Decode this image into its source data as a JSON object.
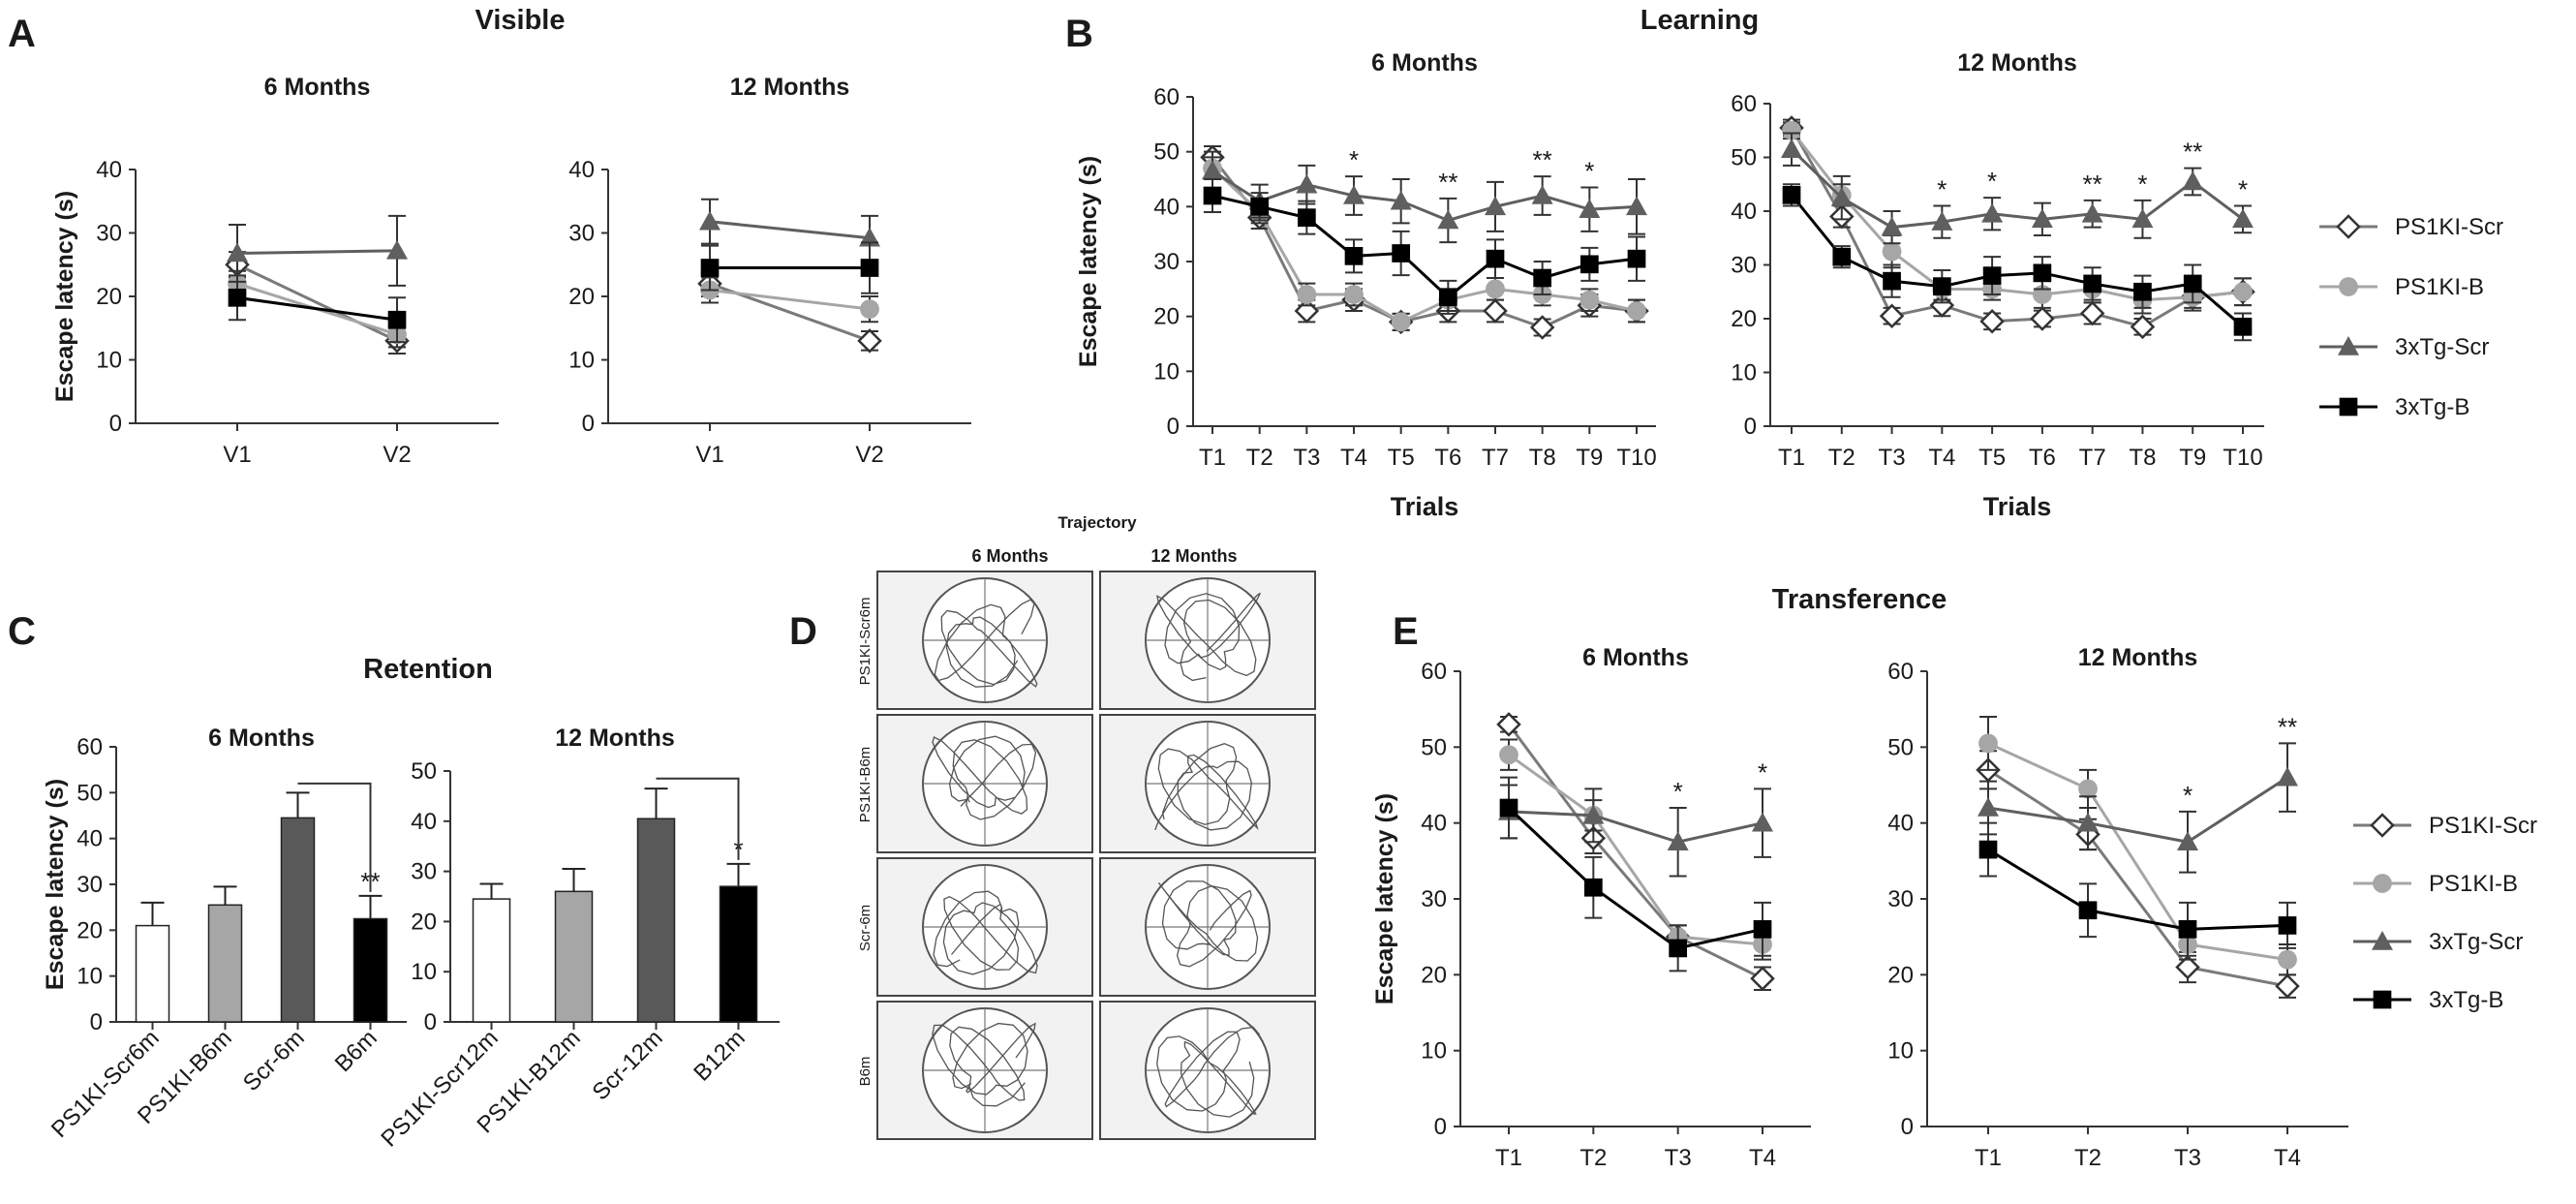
{
  "figure": {
    "panel_letters": [
      "A",
      "B",
      "C",
      "D",
      "E"
    ],
    "section_titles": {
      "visible": "Visible",
      "learning": "Learning",
      "retention": "Retention",
      "transference": "Transference",
      "trajectory": "Trajectory"
    },
    "trajectory": {
      "col_headers": [
        "6 Months",
        "12 Months"
      ],
      "row_labels": [
        "PS1KI-Scr6m",
        "PS1KI-B6m",
        "Scr-6m",
        "B6m"
      ]
    },
    "legend": [
      "PS1KI-Scr",
      "PS1KI-B",
      "3xTg-Scr",
      "3xTg-B"
    ]
  },
  "series_styles": [
    {
      "name": "PS1KI-Scr",
      "marker": "diamond-open",
      "color": "#7a7a7a"
    },
    {
      "name": "PS1KI-B",
      "marker": "circle",
      "color": "#a6a6a6"
    },
    {
      "name": "3xTg-Scr",
      "marker": "triangle",
      "color": "#5f5f5f"
    },
    {
      "name": "3xTg-B",
      "marker": "square",
      "color": "#000000"
    }
  ],
  "chart_data": [
    {
      "id": "A1",
      "type": "line",
      "section": "Visible",
      "title": "6 Months",
      "ylabel": "Escape latency (s)",
      "xlabel": "",
      "ylim": [
        0,
        40
      ],
      "yticks": [
        0,
        10,
        20,
        30,
        40
      ],
      "categories": [
        "V1",
        "V2"
      ],
      "series": [
        {
          "name": "PS1KI-Scr",
          "values": [
            25,
            13
          ],
          "errors": [
            2,
            2
          ]
        },
        {
          "name": "PS1KI-B",
          "values": [
            22,
            14
          ],
          "errors": [
            2,
            2
          ]
        },
        {
          "name": "3xTg-Scr",
          "values": [
            26.8,
            27.2
          ],
          "errors": [
            4.5,
            5.5
          ]
        },
        {
          "name": "3xTg-B",
          "values": [
            19.8,
            16.3
          ],
          "errors": [
            3.5,
            3.5
          ]
        }
      ],
      "significance": [
        "",
        ""
      ]
    },
    {
      "id": "A2",
      "type": "line",
      "section": "Visible",
      "title": "12 Months",
      "ylabel": "",
      "xlabel": "",
      "ylim": [
        0,
        40
      ],
      "yticks": [
        0,
        10,
        20,
        30,
        40
      ],
      "categories": [
        "V1",
        "V2"
      ],
      "series": [
        {
          "name": "PS1KI-Scr",
          "values": [
            22,
            13
          ],
          "errors": [
            2,
            1.5
          ]
        },
        {
          "name": "PS1KI-B",
          "values": [
            21,
            18
          ],
          "errors": [
            2,
            2
          ]
        },
        {
          "name": "3xTg-Scr",
          "values": [
            31.8,
            29.2
          ],
          "errors": [
            3.5,
            3.5
          ]
        },
        {
          "name": "3xTg-B",
          "values": [
            24.5,
            24.5
          ],
          "errors": [
            3.5,
            4
          ]
        }
      ],
      "significance": [
        "",
        ""
      ]
    },
    {
      "id": "B1",
      "type": "line",
      "section": "Learning",
      "title": "6 Months",
      "ylabel": "Escape latency (s)",
      "xlabel": "Trials",
      "ylim": [
        0,
        60
      ],
      "yticks": [
        0,
        10,
        20,
        30,
        40,
        50,
        60
      ],
      "categories": [
        "T1",
        "T2",
        "T3",
        "T4",
        "T5",
        "T6",
        "T7",
        "T8",
        "T9",
        "T10"
      ],
      "series": [
        {
          "name": "PS1KI-Scr",
          "values": [
            49,
            38,
            21,
            23,
            19,
            21,
            21,
            18,
            22,
            21
          ],
          "errors": [
            2,
            2,
            2,
            2,
            1.5,
            2,
            2,
            1.5,
            2,
            2
          ]
        },
        {
          "name": "PS1KI-B",
          "values": [
            47,
            39,
            24,
            24,
            19,
            23,
            25,
            24,
            23,
            21
          ],
          "errors": [
            2,
            2,
            2,
            2,
            1.5,
            2,
            2,
            2,
            2,
            2
          ]
        },
        {
          "name": "3xTg-Scr",
          "values": [
            46.5,
            41,
            44,
            42,
            41,
            37.5,
            40,
            42,
            39.5,
            40
          ],
          "errors": [
            3.5,
            3,
            3.5,
            3.5,
            4,
            4,
            4.5,
            3.5,
            4,
            5
          ]
        },
        {
          "name": "3xTg-B",
          "values": [
            42,
            40,
            38,
            31,
            31.5,
            23.5,
            30.5,
            27,
            29.5,
            30.5
          ],
          "errors": [
            3,
            2.5,
            3,
            3,
            4,
            3,
            3.5,
            3,
            3,
            4
          ]
        }
      ],
      "significance": [
        "",
        "",
        "",
        "*",
        "",
        "**",
        "",
        "**",
        "*",
        ""
      ]
    },
    {
      "id": "B2",
      "type": "line",
      "section": "Learning",
      "title": "12 Months",
      "ylabel": "",
      "xlabel": "Trials",
      "ylim": [
        0,
        60
      ],
      "yticks": [
        0,
        10,
        20,
        30,
        40,
        50,
        60
      ],
      "categories": [
        "T1",
        "T2",
        "T3",
        "T4",
        "T5",
        "T6",
        "T7",
        "T8",
        "T9",
        "T10"
      ],
      "series": [
        {
          "name": "PS1KI-Scr",
          "values": [
            55.5,
            39,
            20.5,
            22.5,
            19.5,
            20,
            21,
            18.5,
            24,
            25
          ],
          "errors": [
            1.5,
            2,
            1.5,
            2,
            1.5,
            1.5,
            2,
            1.5,
            2,
            2.5
          ]
        },
        {
          "name": "PS1KI-B",
          "values": [
            55,
            43,
            32.5,
            25.5,
            25.5,
            24.5,
            25.5,
            23.5,
            24,
            25
          ],
          "errors": [
            1.5,
            2,
            3,
            2,
            2,
            2.5,
            2.5,
            2.5,
            2.5,
            2.5
          ]
        },
        {
          "name": "3xTg-Scr",
          "values": [
            51.5,
            42.5,
            37,
            38,
            39.5,
            38.5,
            39.5,
            38.5,
            45.5,
            38.5
          ],
          "errors": [
            3,
            4,
            3,
            3,
            3,
            3,
            2.5,
            3.5,
            2.5,
            2.5
          ]
        },
        {
          "name": "3xTg-B",
          "values": [
            43,
            31.5,
            27,
            26,
            28,
            28.5,
            26.5,
            25,
            26.5,
            18.5
          ],
          "errors": [
            2,
            2,
            3,
            3,
            3.5,
            3,
            3,
            3,
            3.5,
            2.5
          ]
        }
      ],
      "significance": [
        "",
        "",
        "",
        "*",
        "*",
        "",
        "**",
        "*",
        "**",
        "*"
      ]
    },
    {
      "id": "C1",
      "type": "bar",
      "section": "Retention",
      "title": "6 Months",
      "ylabel": "Escape latency (s)",
      "xlabel": "",
      "ylim": [
        0,
        60
      ],
      "yticks": [
        0,
        10,
        20,
        30,
        40,
        50,
        60
      ],
      "categories": [
        "PS1KI-Scr6m",
        "PS1KI-B6m",
        "Scr-6m",
        "B6m"
      ],
      "values": [
        21,
        25.5,
        44.5,
        22.5
      ],
      "errors": [
        5,
        4,
        5.5,
        5
      ],
      "bar_colors": [
        "#ffffff",
        "#a6a6a6",
        "#595959",
        "#000000"
      ],
      "significance": [
        "",
        "",
        "",
        "**"
      ],
      "bracket": [
        2,
        3
      ]
    },
    {
      "id": "C2",
      "type": "bar",
      "section": "Retention",
      "title": "12 Months",
      "ylabel": "",
      "xlabel": "",
      "ylim": [
        0,
        50
      ],
      "yticks": [
        0,
        10,
        20,
        30,
        40,
        50
      ],
      "categories": [
        "PS1KI-Scr12m",
        "PS1KI-B12m",
        "Scr-12m",
        "B12m"
      ],
      "values": [
        24.5,
        26,
        40.5,
        27
      ],
      "errors": [
        3,
        4.5,
        6,
        4.5
      ],
      "bar_colors": [
        "#ffffff",
        "#a6a6a6",
        "#595959",
        "#000000"
      ],
      "significance": [
        "",
        "",
        "",
        "*"
      ],
      "bracket": [
        2,
        3
      ]
    },
    {
      "id": "E1",
      "type": "line",
      "section": "Transference",
      "title": "6 Months",
      "ylabel": "Escape latency (s)",
      "xlabel": "",
      "ylim": [
        0,
        60
      ],
      "yticks": [
        0,
        10,
        20,
        30,
        40,
        50,
        60
      ],
      "categories": [
        "T1",
        "T2",
        "T3",
        "T4"
      ],
      "series": [
        {
          "name": "PS1KI-Scr",
          "values": [
            53,
            38,
            25,
            19.5
          ],
          "errors": [
            1,
            2,
            1.5,
            1.5
          ]
        },
        {
          "name": "PS1KI-B",
          "values": [
            49,
            41,
            25,
            24
          ],
          "errors": [
            2,
            2,
            1.5,
            2
          ]
        },
        {
          "name": "3xTg-Scr",
          "values": [
            41.5,
            41,
            37.5,
            40
          ],
          "errors": [
            3.5,
            3.5,
            4.5,
            4.5
          ]
        },
        {
          "name": "3xTg-B",
          "values": [
            42,
            31.5,
            23.5,
            26
          ],
          "errors": [
            4,
            4,
            3,
            3.5
          ]
        }
      ],
      "significance": [
        "",
        "",
        "*",
        "*"
      ]
    },
    {
      "id": "E2",
      "type": "line",
      "section": "Transference",
      "title": "12 Months",
      "ylabel": "",
      "xlabel": "",
      "ylim": [
        0,
        60
      ],
      "yticks": [
        0,
        10,
        20,
        30,
        40,
        50,
        60
      ],
      "categories": [
        "T1",
        "T2",
        "T3",
        "T4"
      ],
      "series": [
        {
          "name": "PS1KI-Scr",
          "values": [
            47,
            38.5,
            21,
            18.5
          ],
          "errors": [
            2.5,
            2,
            2,
            1.5
          ]
        },
        {
          "name": "PS1KI-B",
          "values": [
            50.5,
            44.5,
            24,
            22
          ],
          "errors": [
            3.5,
            2.5,
            2,
            2
          ]
        },
        {
          "name": "3xTg-Scr",
          "values": [
            42,
            40,
            37.5,
            46
          ],
          "errors": [
            3.5,
            3.5,
            4,
            4.5
          ]
        },
        {
          "name": "3xTg-B",
          "values": [
            36.5,
            28.5,
            26,
            26.5
          ],
          "errors": [
            3.5,
            3.5,
            3.5,
            3
          ]
        }
      ],
      "significance": [
        "",
        "",
        "*",
        "**"
      ]
    }
  ]
}
